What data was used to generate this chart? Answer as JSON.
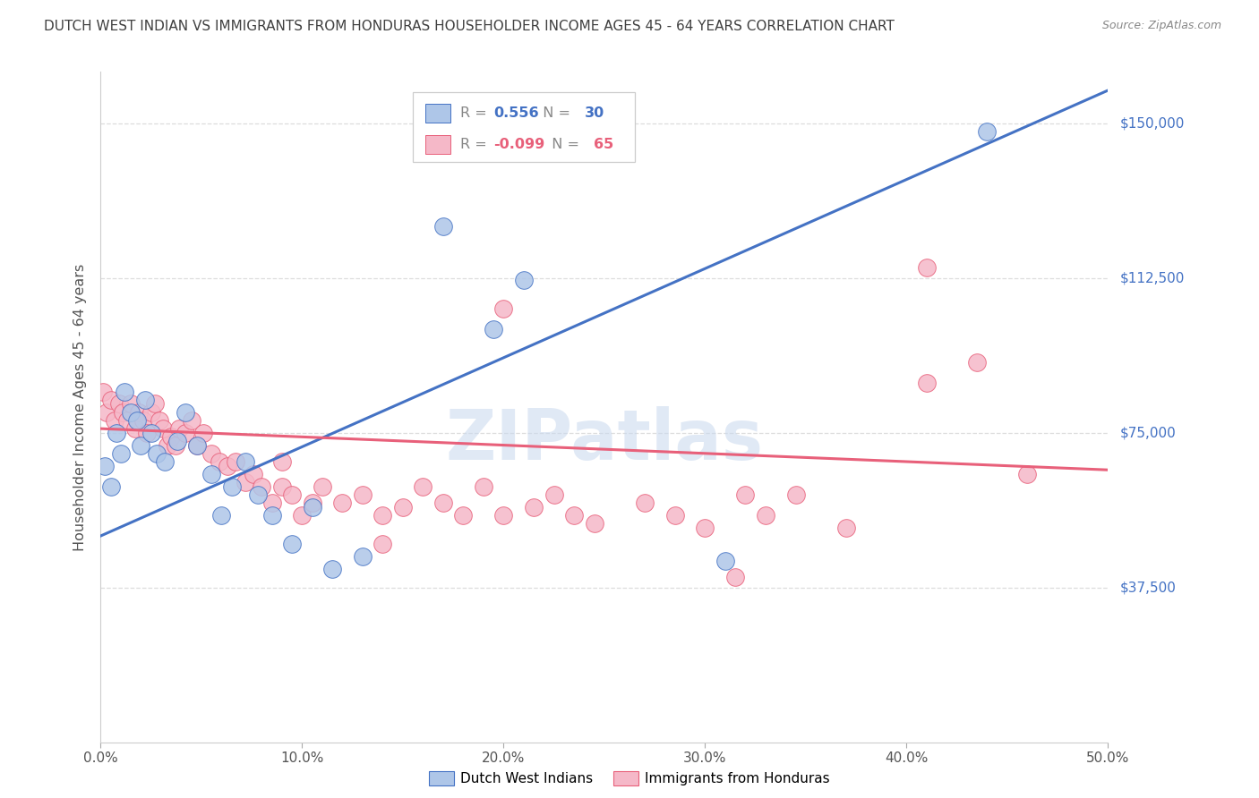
{
  "title": "DUTCH WEST INDIAN VS IMMIGRANTS FROM HONDURAS HOUSEHOLDER INCOME AGES 45 - 64 YEARS CORRELATION CHART",
  "source": "Source: ZipAtlas.com",
  "ylabel_label": "Householder Income Ages 45 - 64 years",
  "legend_blue_rv": "0.556",
  "legend_blue_nv": "30",
  "legend_pink_rv": "-0.099",
  "legend_pink_nv": "65",
  "legend_label_blue": "Dutch West Indians",
  "legend_label_pink": "Immigrants from Honduras",
  "watermark": "ZIPatlas",
  "blue_color": "#aec6e8",
  "pink_color": "#f5b8c8",
  "blue_line_color": "#4472c4",
  "pink_line_color": "#e8607a",
  "title_color": "#404040",
  "tick_label_color": "#555555",
  "source_color": "#888888",
  "grid_color": "#dddddd",
  "xlim": [
    0.0,
    0.5
  ],
  "ylim": [
    0,
    162500
  ],
  "xtick_vals": [
    0.0,
    0.1,
    0.2,
    0.3,
    0.4,
    0.5
  ],
  "xtick_labels": [
    "0.0%",
    "10.0%",
    "20.0%",
    "30.0%",
    "40.0%",
    "50.0%"
  ],
  "ytick_vals": [
    37500,
    75000,
    112500,
    150000
  ],
  "ytick_labels": [
    "$37,500",
    "$75,000",
    "$112,500",
    "$150,000"
  ],
  "blue_line_x": [
    0.0,
    0.5
  ],
  "blue_line_y": [
    50000,
    158000
  ],
  "pink_line_x": [
    0.0,
    0.5
  ],
  "pink_line_y": [
    76000,
    66000
  ],
  "blue_scatter_x": [
    0.002,
    0.005,
    0.008,
    0.01,
    0.012,
    0.015,
    0.018,
    0.02,
    0.022,
    0.025,
    0.028,
    0.032,
    0.038,
    0.042,
    0.048,
    0.055,
    0.06,
    0.065,
    0.072,
    0.078,
    0.085,
    0.095,
    0.105,
    0.115,
    0.13,
    0.17,
    0.195,
    0.21,
    0.31,
    0.44
  ],
  "blue_scatter_y": [
    67000,
    62000,
    75000,
    70000,
    85000,
    80000,
    78000,
    72000,
    83000,
    75000,
    70000,
    68000,
    73000,
    80000,
    72000,
    65000,
    55000,
    62000,
    68000,
    60000,
    55000,
    48000,
    57000,
    42000,
    45000,
    125000,
    100000,
    112000,
    44000,
    148000
  ],
  "pink_scatter_x": [
    0.001,
    0.003,
    0.005,
    0.007,
    0.009,
    0.011,
    0.013,
    0.015,
    0.017,
    0.019,
    0.021,
    0.023,
    0.025,
    0.027,
    0.029,
    0.031,
    0.033,
    0.035,
    0.037,
    0.039,
    0.042,
    0.045,
    0.048,
    0.051,
    0.055,
    0.059,
    0.063,
    0.067,
    0.072,
    0.076,
    0.08,
    0.085,
    0.09,
    0.095,
    0.1,
    0.105,
    0.11,
    0.12,
    0.13,
    0.14,
    0.15,
    0.16,
    0.17,
    0.18,
    0.19,
    0.2,
    0.215,
    0.225,
    0.235,
    0.245,
    0.27,
    0.285,
    0.3,
    0.315,
    0.32,
    0.33,
    0.345,
    0.37,
    0.41,
    0.435,
    0.46,
    0.41,
    0.2,
    0.14,
    0.09
  ],
  "pink_scatter_y": [
    85000,
    80000,
    83000,
    78000,
    82000,
    80000,
    78000,
    82000,
    76000,
    80000,
    78000,
    75000,
    80000,
    82000,
    78000,
    76000,
    72000,
    74000,
    72000,
    76000,
    75000,
    78000,
    72000,
    75000,
    70000,
    68000,
    67000,
    68000,
    63000,
    65000,
    62000,
    58000,
    62000,
    60000,
    55000,
    58000,
    62000,
    58000,
    60000,
    55000,
    57000,
    62000,
    58000,
    55000,
    62000,
    55000,
    57000,
    60000,
    55000,
    53000,
    58000,
    55000,
    52000,
    40000,
    60000,
    55000,
    60000,
    52000,
    87000,
    92000,
    65000,
    115000,
    105000,
    48000,
    68000
  ]
}
